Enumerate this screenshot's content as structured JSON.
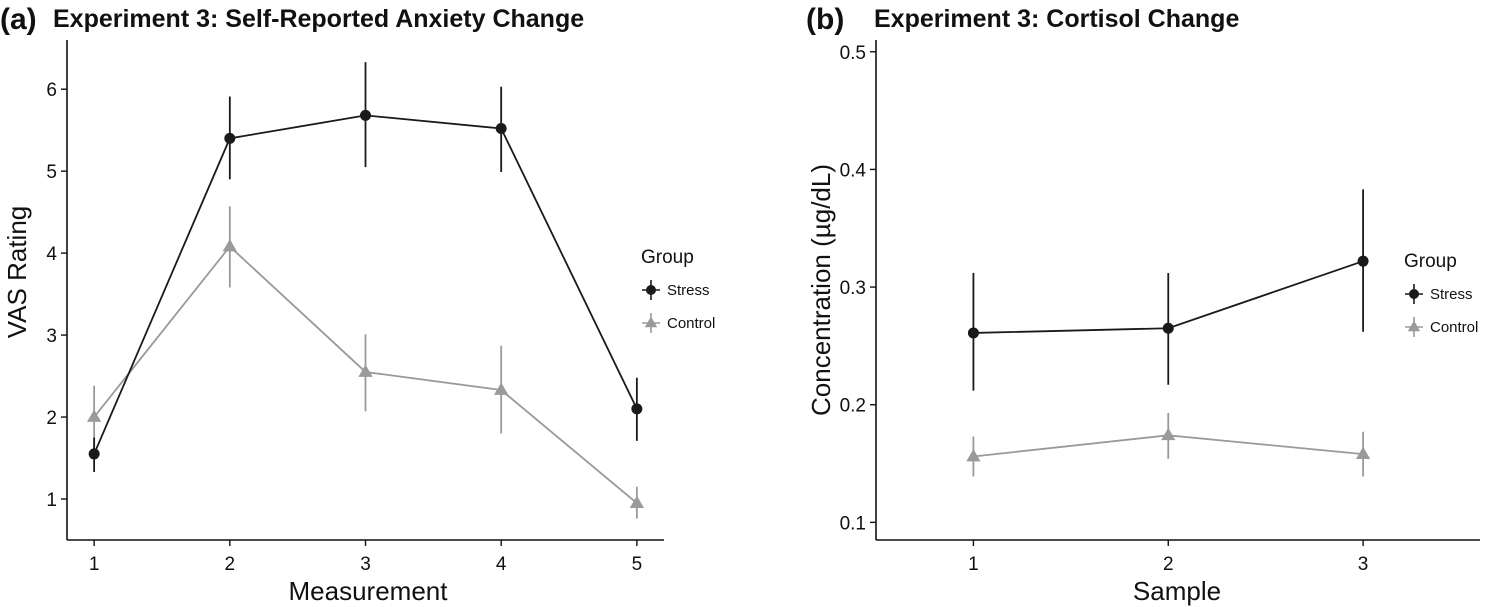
{
  "figure": {
    "panels": [
      {
        "tag": "(a)",
        "title": "Experiment 3: Self-Reported Anxiety Change"
      },
      {
        "tag": "(b)",
        "title": "Experiment 3: Cortisol Change"
      }
    ]
  },
  "chart_data": [
    {
      "type": "line",
      "title": "Experiment 3: Self-Reported Anxiety Change",
      "xlabel": "Measurement",
      "ylabel": "VAS Rating",
      "x": [
        1,
        2,
        3,
        4,
        5
      ],
      "xlim": [
        0.8,
        5.2
      ],
      "ylim": [
        0.5,
        6.6
      ],
      "xticks": [
        1,
        2,
        3,
        4,
        5
      ],
      "yticks": [
        1,
        2,
        3,
        4,
        5,
        6
      ],
      "grid": false,
      "legend": {
        "title": "Group",
        "position": "right"
      },
      "series": [
        {
          "name": "Stress",
          "color": "#1a1a1a",
          "marker": "circle",
          "values": [
            1.55,
            5.4,
            5.68,
            5.52,
            2.1
          ],
          "error_low": [
            1.33,
            4.9,
            5.05,
            4.99,
            1.71
          ],
          "error_high": [
            1.75,
            5.91,
            6.33,
            6.03,
            2.48
          ]
        },
        {
          "name": "Control",
          "color": "#9a9a9a",
          "marker": "triangle",
          "values": [
            2.0,
            4.08,
            2.55,
            2.33,
            0.95
          ],
          "error_low": [
            1.6,
            3.58,
            2.07,
            1.8,
            0.76
          ],
          "error_high": [
            2.38,
            4.57,
            3.01,
            2.87,
            1.15
          ]
        }
      ]
    },
    {
      "type": "line",
      "title": "Experiment 3: Cortisol Change",
      "xlabel": "Sample",
      "ylabel": "Concentration (µg/dL)",
      "x": [
        1,
        2,
        3
      ],
      "xlim": [
        0.5,
        3.6
      ],
      "ylim": [
        0.085,
        0.51
      ],
      "xticks": [
        1,
        2,
        3
      ],
      "yticks": [
        0.1,
        0.2,
        0.3,
        0.4,
        0.5
      ],
      "grid": false,
      "legend": {
        "title": "Group",
        "position": "right"
      },
      "series": [
        {
          "name": "Stress",
          "color": "#1a1a1a",
          "marker": "circle",
          "values": [
            0.261,
            0.265,
            0.322
          ],
          "error_low": [
            0.212,
            0.217,
            0.262
          ],
          "error_high": [
            0.312,
            0.312,
            0.383
          ]
        },
        {
          "name": "Control",
          "color": "#9a9a9a",
          "marker": "triangle",
          "values": [
            0.156,
            0.174,
            0.158
          ],
          "error_low": [
            0.139,
            0.154,
            0.139
          ],
          "error_high": [
            0.173,
            0.193,
            0.177
          ]
        }
      ]
    }
  ]
}
